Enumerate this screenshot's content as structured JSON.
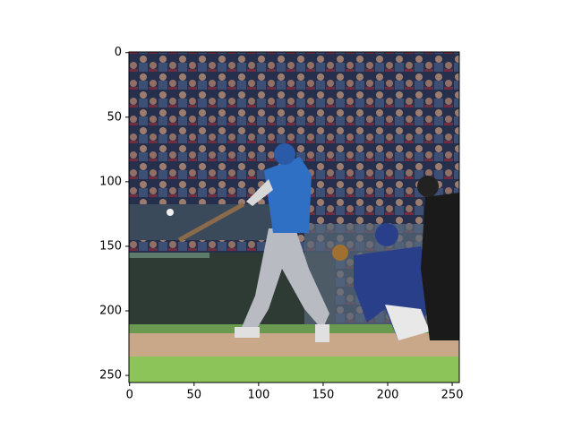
{
  "chart_data": {
    "type": "image",
    "xlim": [
      -0.5,
      255.5
    ],
    "ylim": [
      255.5,
      -0.5
    ],
    "xticks": [
      0,
      50,
      100,
      150,
      200,
      250
    ],
    "yticks": [
      0,
      50,
      100,
      150,
      200,
      250
    ]
  }
}
